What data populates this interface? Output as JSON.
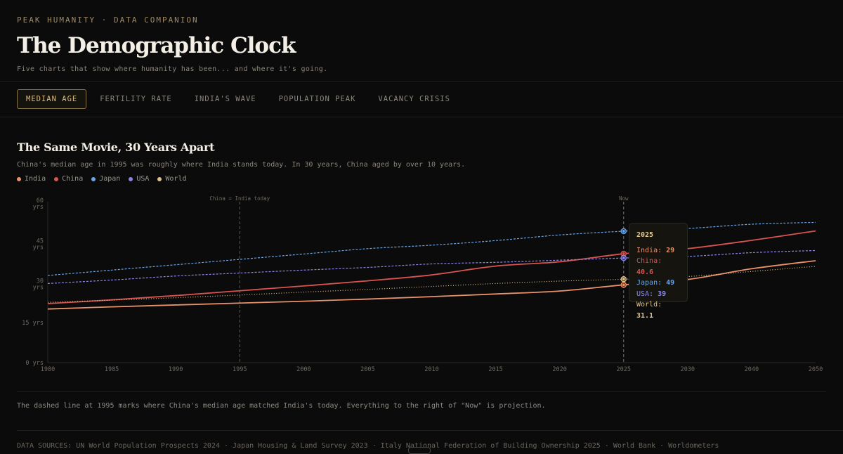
{
  "header": {
    "eyebrow": "PEAK HUMANITY · DATA COMPANION",
    "title": "The Demographic Clock",
    "subtitle": "Five charts that show where humanity has been... and where it's going."
  },
  "tabs": [
    {
      "label": "MEDIAN AGE",
      "active": true
    },
    {
      "label": "FERTILITY RATE",
      "active": false
    },
    {
      "label": "INDIA'S WAVE",
      "active": false
    },
    {
      "label": "POPULATION PEAK",
      "active": false
    },
    {
      "label": "VACANCY CRISIS",
      "active": false
    }
  ],
  "panel": {
    "title": "The Same Movie, 30 Years Apart",
    "subtitle": "China's median age in 1995 was roughly where India stands today. In 30 years, China aged by over 10 years.",
    "note": "The dashed line at 1995 marks where China's median age matched India's today. Everything to the right of \"Now\" is projection."
  },
  "tooltip": {
    "year": "2025",
    "rows": [
      {
        "label": "India:",
        "value": "29"
      },
      {
        "label": "China:",
        "value": "40.6"
      },
      {
        "label": "Japan:",
        "value": "49"
      },
      {
        "label": "USA:",
        "value": "39"
      },
      {
        "label": "World:",
        "value": "31.1"
      }
    ]
  },
  "footer": {
    "sources": "DATA SOURCES: UN World Population Prospects 2024 · Japan Housing & Land Survey 2023 · Italy National Federation of Building Ownership 2025 · World Bank · Worldometers"
  },
  "chart_data": {
    "type": "line",
    "x": [
      1980,
      1985,
      1990,
      1995,
      2000,
      2005,
      2010,
      2015,
      2020,
      2025,
      2030,
      2040,
      2050
    ],
    "x_ticks": [
      "1980",
      "1985",
      "1990",
      "1995",
      "2000",
      "2005",
      "2010",
      "2015",
      "2020",
      "2025",
      "2030",
      "2040",
      "2050"
    ],
    "y_ticks": [
      {
        "value": 0,
        "label": "0 yrs"
      },
      {
        "value": 15,
        "label": "15 yrs"
      },
      {
        "value": 30,
        "label": "30 yrs"
      },
      {
        "value": 45,
        "label": "45 yrs"
      },
      {
        "value": 60,
        "label": "60 yrs"
      }
    ],
    "ylim": [
      0,
      60
    ],
    "series": [
      {
        "name": "India",
        "color": "#e8916a",
        "dash": false,
        "values": [
          20,
          20.8,
          21.5,
          22.2,
          22.9,
          23.7,
          24.6,
          25.6,
          26.7,
          29,
          31,
          35,
          38
        ]
      },
      {
        "name": "China",
        "color": "#d9534f",
        "dash": false,
        "values": [
          22,
          23.4,
          25,
          26.8,
          28.6,
          30.5,
          32.7,
          36,
          37.6,
          40.6,
          42.5,
          45.6,
          49.1
        ]
      },
      {
        "name": "Japan",
        "color": "#6aa5e8",
        "dash": true,
        "values": [
          32.5,
          34.5,
          36.5,
          38.5,
          40.5,
          42.5,
          43.8,
          45.5,
          47.6,
          49,
          50,
          51.6,
          52.3
        ]
      },
      {
        "name": "USA",
        "color": "#8a86e8",
        "dash": true,
        "values": [
          29.5,
          30.8,
          32.3,
          33.4,
          34.5,
          35.5,
          36.8,
          37.4,
          38.2,
          39,
          39.6,
          41,
          41.8
        ]
      },
      {
        "name": "World",
        "color": "#e0c48a",
        "dash": "dotted",
        "values": [
          22.5,
          23.3,
          24.2,
          25.2,
          26.3,
          27.3,
          28.4,
          29.5,
          30.4,
          31.1,
          32.1,
          34,
          35.9
        ]
      }
    ],
    "reference_lines": [
      {
        "x": 1995,
        "label": "China = India today"
      },
      {
        "x": 2025,
        "label": "Now"
      }
    ],
    "highlight_x": 2025,
    "grid": false,
    "legend_position": "top-left"
  }
}
